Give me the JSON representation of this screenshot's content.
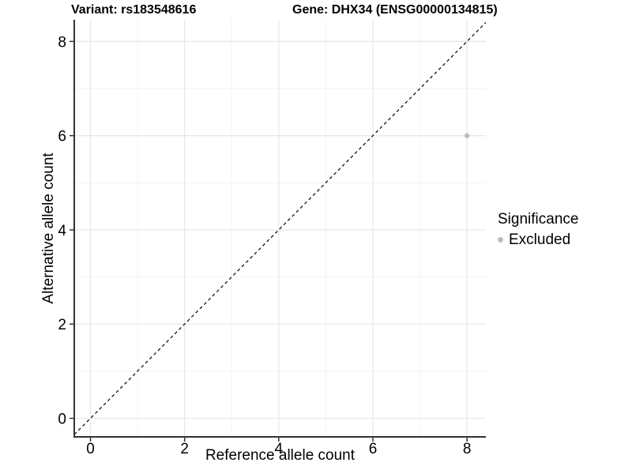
{
  "titles": {
    "variant": "Variant: rs183548616",
    "gene": "Gene: DHX34 (ENSG00000134815)"
  },
  "legend": {
    "title": "Significance",
    "items": [
      {
        "label": "Excluded",
        "color": "#bdbdbd"
      }
    ]
  },
  "chart_data": {
    "type": "scatter",
    "title_left": "Variant: rs183548616",
    "title_right": "Gene: DHX34 (ENSG00000134815)",
    "xlabel": "Reference allele count",
    "ylabel": "Alternative allele count",
    "xlim": [
      -0.344,
      8.4
    ],
    "ylim": [
      -0.394,
      8.46
    ],
    "x_ticks": [
      0,
      2,
      4,
      6,
      8
    ],
    "y_ticks": [
      0,
      2,
      4,
      6,
      8
    ],
    "x_minor_gridlines": [
      1,
      3,
      5,
      7
    ],
    "y_minor_gridlines": [
      1,
      3,
      5,
      7
    ],
    "grid": true,
    "legend_position": "right",
    "series": [
      {
        "name": "Excluded",
        "color": "#bdbdbd",
        "points": [
          {
            "x": 8,
            "y": 6
          }
        ]
      }
    ],
    "reference_line": {
      "kind": "identity",
      "slope": 1,
      "intercept": 0,
      "style": "dashed",
      "color": "#000000"
    },
    "style": {
      "background": "#ffffff",
      "major_grid_color": "#e8e8e8",
      "minor_grid_color": "#f3f3f3",
      "axis_line_color": "#333333",
      "tick_label_color": "#000000",
      "point_radius": 3.2
    }
  }
}
